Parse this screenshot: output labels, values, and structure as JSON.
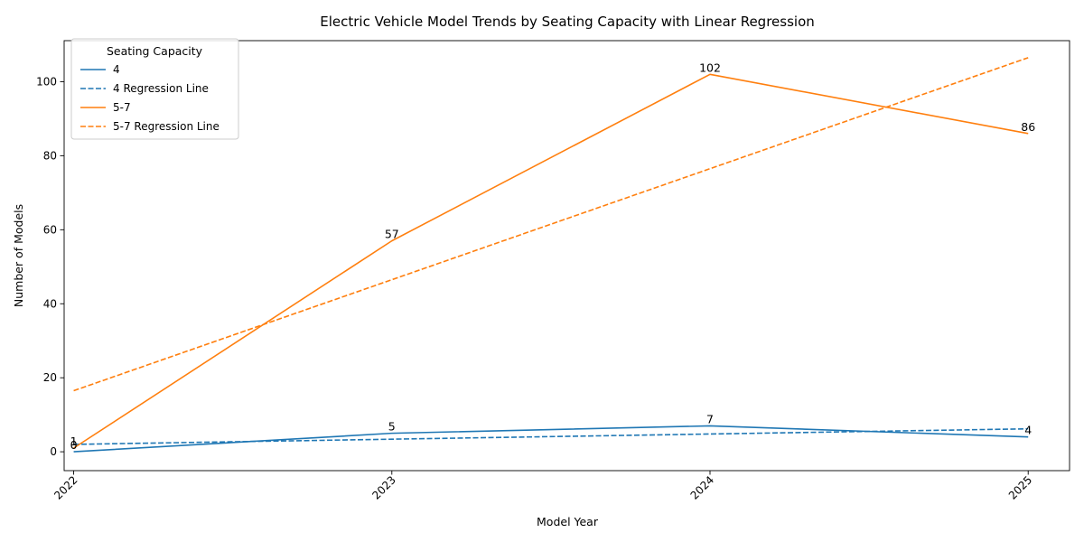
{
  "chart_data": {
    "type": "line",
    "title": "Electric Vehicle Model Trends by Seating Capacity with Linear Regression",
    "xlabel": "Model Year",
    "ylabel": "Number of Models",
    "x": [
      2022,
      2023,
      2024,
      2025
    ],
    "x_tick_labels": [
      "2022",
      "2023",
      "2024",
      "2025"
    ],
    "xlim": [
      2021.97,
      2025.13
    ],
    "y_ticks": [
      0,
      20,
      40,
      60,
      80,
      100
    ],
    "y_tick_labels": [
      "0",
      "20",
      "40",
      "60",
      "80",
      "100"
    ],
    "ylim": [
      -5.1,
      111.1
    ],
    "grid": false,
    "legend": {
      "title": "Seating Capacity",
      "placement": "top-left"
    },
    "series": [
      {
        "name": "4",
        "kind": "actual",
        "color": "#1f77b4",
        "dashed": false,
        "values": [
          0,
          5,
          7,
          4
        ],
        "labels": [
          "0",
          "5",
          "7",
          "4"
        ]
      },
      {
        "name": "4 Regression Line",
        "kind": "regression",
        "color": "#1f77b4",
        "dashed": true,
        "values": [
          2.0,
          3.4,
          4.8,
          6.2
        ]
      },
      {
        "name": "5-7",
        "kind": "actual",
        "color": "#ff7f0e",
        "dashed": false,
        "values": [
          1,
          57,
          102,
          86
        ],
        "labels": [
          "1",
          "57",
          "102",
          "86"
        ]
      },
      {
        "name": "5-7 Regression Line",
        "kind": "regression",
        "color": "#ff7f0e",
        "dashed": true,
        "values": [
          16.5,
          46.5,
          76.5,
          106.5
        ]
      }
    ]
  }
}
